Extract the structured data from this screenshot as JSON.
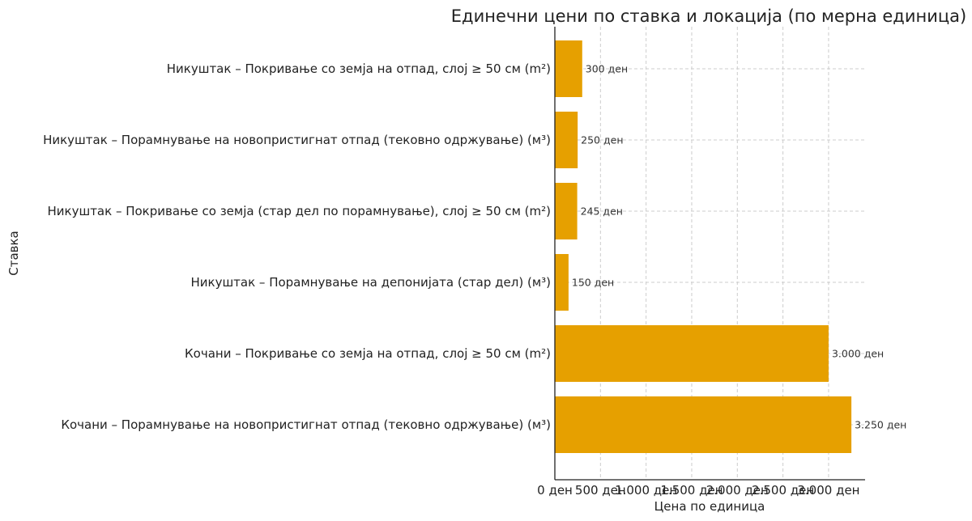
{
  "chart_data": {
    "type": "bar",
    "orientation": "horizontal",
    "title": "Единечни цени по ставка и локација (по мерна единица)",
    "xlabel": "Цена по единица",
    "ylabel": "Ставка",
    "xlim": [
      0,
      3400
    ],
    "grid": true,
    "color": "#E6A000",
    "categories": [
      "Никуштак – Покривање со земја на отпад, слој ≥ 50 см (m²)",
      "Никуштак – Порамнување на новопристигнат отпад (тековно одржување) (м³)",
      "Никуштак – Покривање со земја (стар дел по порамнување), слој ≥ 50 см (m²)",
      "Никуштак – Порамнување на депонијата (стар дел) (м³)",
      "Кочани – Покривање со земја на отпад, слој ≥ 50 см (m²)",
      "Кочани – Порамнување на новопристигнат отпад (тековно одржување) (м³)"
    ],
    "values": [
      300,
      250,
      245,
      150,
      3000,
      3250
    ],
    "value_labels": [
      "300 ден",
      "250 ден",
      "245 ден",
      "150 ден",
      "3.000 ден",
      "3.250 ден"
    ],
    "xticks": [
      0,
      500,
      1000,
      1500,
      2000,
      2500,
      3000
    ],
    "xtick_labels": [
      "0 ден",
      "500 ден",
      "1.000 ден",
      "1.500 ден",
      "2.000 ден",
      "2.500 ден",
      "3.000 ден"
    ]
  }
}
